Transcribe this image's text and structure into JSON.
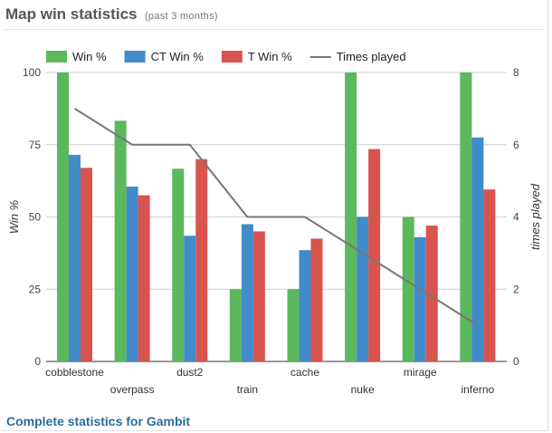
{
  "header": {
    "title": "Map win statistics",
    "subtitle": "(past 3 months)"
  },
  "footer": {
    "link_label": "Complete statistics for Gambit"
  },
  "chart_data": {
    "type": "bar",
    "title": "",
    "categories": [
      "cobblestone",
      "overpass",
      "dust2",
      "train",
      "cache",
      "nuke",
      "mirage",
      "inferno"
    ],
    "series": [
      {
        "name": "Win %",
        "type": "bar",
        "axis": "left",
        "color": "#5cb85c",
        "values": [
          100,
          83.3,
          66.7,
          25,
          25,
          100,
          50,
          100
        ]
      },
      {
        "name": "CT Win %",
        "type": "bar",
        "axis": "left",
        "color": "#428bca",
        "values": [
          71.5,
          60.5,
          43.5,
          47.5,
          38.5,
          50,
          43,
          77.5
        ]
      },
      {
        "name": "T Win %",
        "type": "bar",
        "axis": "left",
        "color": "#d9534f",
        "values": [
          67,
          57.5,
          70,
          45,
          42.5,
          73.5,
          47,
          59.5
        ]
      },
      {
        "name": "Times played",
        "type": "line",
        "axis": "right",
        "color": "#777777",
        "values": [
          7,
          6,
          6,
          4,
          4,
          3,
          2,
          1
        ]
      }
    ],
    "y_left": {
      "label": "Win %",
      "min": 0,
      "max": 100,
      "ticks": [
        0,
        25,
        50,
        75,
        100
      ]
    },
    "y_right": {
      "label": "times played",
      "min": 0,
      "max": 8,
      "ticks": [
        0,
        2,
        4,
        6,
        8
      ]
    },
    "grid": true,
    "legend_position": "top"
  }
}
